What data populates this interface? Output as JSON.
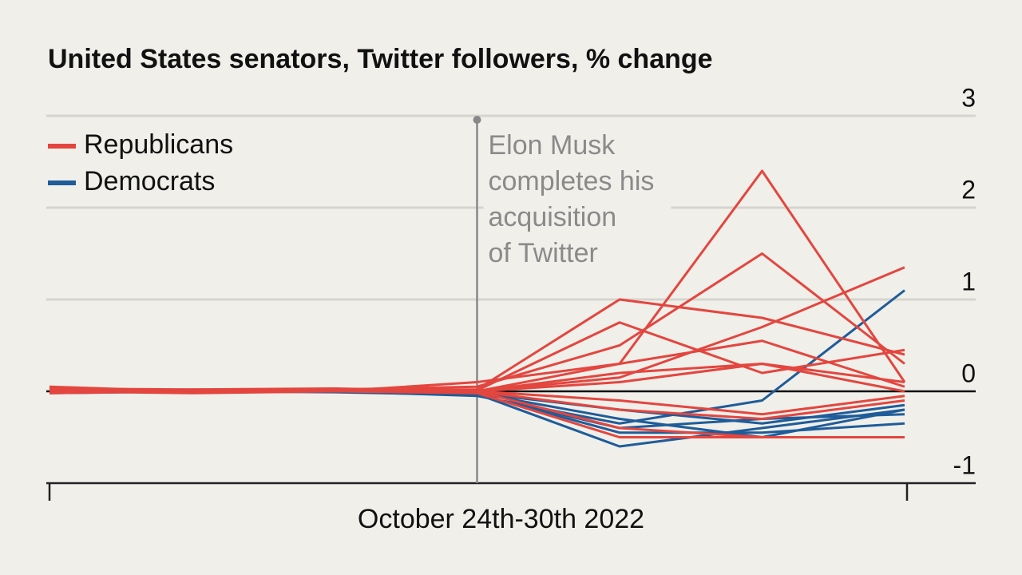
{
  "chart_data": {
    "type": "line",
    "title": "United States senators, Twitter followers, % change",
    "x_label": "October 24th-30th 2022",
    "categories": [
      null,
      null,
      null,
      null,
      null,
      null,
      null
    ],
    "ylim": [
      -1,
      3
    ],
    "yticks": [
      -1,
      0,
      1,
      2,
      3
    ],
    "grid": true,
    "legend": "top-left",
    "annotation": {
      "x": 3,
      "lines": [
        "Elon Musk",
        "completes his",
        "acquisition",
        "of Twitter"
      ]
    },
    "series": [
      {
        "name": "Republicans",
        "color": "#e3463f",
        "lines": [
          [
            0.05,
            0,
            0,
            0.1,
            0.3,
            2.4,
            0.1
          ],
          [
            0.02,
            0.01,
            0.02,
            0.05,
            0.5,
            1.5,
            0.3
          ],
          [
            0.03,
            0,
            0.02,
            0.02,
            1.0,
            0.8,
            0.4
          ],
          [
            0,
            0.02,
            0.03,
            0,
            0.15,
            0.7,
            1.35
          ],
          [
            0.04,
            0,
            0.01,
            0.01,
            0.75,
            0.2,
            0.45
          ],
          [
            -0.02,
            0,
            0.01,
            0,
            0.2,
            0.3,
            0.1
          ],
          [
            0.03,
            0.02,
            0,
            0,
            -0.4,
            -0.5,
            -0.5
          ],
          [
            0,
            -0.02,
            0,
            -0.02,
            -0.5,
            -0.5,
            -0.5
          ],
          [
            0.02,
            0,
            0.02,
            0,
            0.1,
            0.3,
            0
          ],
          [
            0,
            0.01,
            0,
            0,
            -0.1,
            -0.25,
            -0.05
          ],
          [
            0.01,
            0,
            0,
            0,
            0.3,
            0.55,
            0.05
          ],
          [
            0,
            0,
            0.02,
            0,
            -0.2,
            -0.3,
            -0.1
          ]
        ]
      },
      {
        "name": "Democrats",
        "color": "#1f5c99",
        "lines": [
          [
            0,
            0,
            0,
            -0.05,
            -0.35,
            -0.1,
            1.1
          ],
          [
            -0.02,
            0,
            0,
            -0.03,
            -0.6,
            -0.4,
            -0.2
          ],
          [
            0,
            -0.01,
            0,
            -0.03,
            -0.45,
            -0.45,
            -0.35
          ],
          [
            0,
            0,
            0,
            -0.02,
            -0.3,
            -0.5,
            -0.2
          ],
          [
            0,
            0,
            -0.01,
            -0.04,
            -0.4,
            -0.3,
            -0.25
          ],
          [
            0,
            0,
            0,
            -0.02,
            -0.2,
            -0.35,
            -0.15
          ]
        ]
      }
    ]
  }
}
